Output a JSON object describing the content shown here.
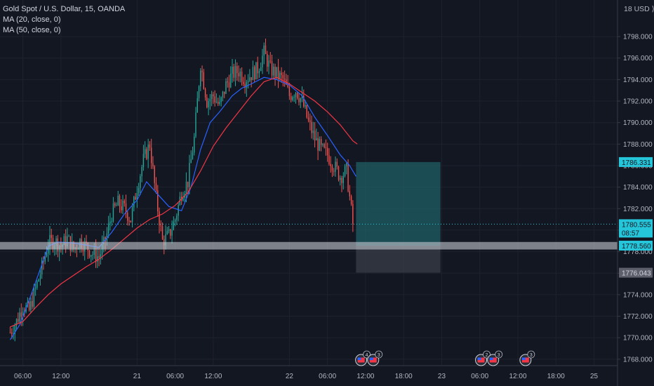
{
  "legend": {
    "symbol": "Gold Spot / U.S. Dollar, 15, OANDA",
    "ma20": "MA (20, close, 0)",
    "ma50": "MA (50, close, 0)"
  },
  "axis_unit": "18 USD ⟩0",
  "colors": {
    "bg": "#131722",
    "up": "#26a69a",
    "down": "#ef5350",
    "ma20": "#2962ff",
    "ma50": "#f23645",
    "text": "#b2b5be",
    "grid": "#1e222d",
    "axis_line": "#363a45",
    "target_zone": "#1f5a60",
    "stop_zone": "#3a3d48",
    "hband": "#c5c8d0",
    "price_tag": "#26c6da"
  },
  "chart_data": {
    "type": "candlestick",
    "ylim": [
      1767.4,
      1801.4
    ],
    "y_ticks": [
      1768,
      1770,
      1772,
      1774,
      1776,
      1778,
      1780,
      1782,
      1784,
      1786,
      1788,
      1790,
      1792,
      1794,
      1796,
      1798
    ],
    "y_tick_labels": [
      "1768.000",
      "1770.000",
      "1772.000",
      "1774.000",
      "1776.000",
      "1778.000",
      "1780.000",
      "1782.000",
      "1784.000",
      "1786.000",
      "1788.000",
      "1790.000",
      "1792.000",
      "1794.000",
      "1796.000",
      "1798.000"
    ],
    "x_ticks": [
      {
        "t": 2,
        "label": "06:00"
      },
      {
        "t": 8,
        "label": "12:00"
      },
      {
        "t": 20,
        "label": "21"
      },
      {
        "t": 26,
        "label": "06:00"
      },
      {
        "t": 32,
        "label": "12:00"
      },
      {
        "t": 44,
        "label": "22"
      },
      {
        "t": 50,
        "label": "06:00"
      },
      {
        "t": 56,
        "label": "12:00"
      },
      {
        "t": 62,
        "label": "18:00"
      },
      {
        "t": 68,
        "label": "23"
      },
      {
        "t": 74,
        "label": "06:00"
      },
      {
        "t": 80,
        "label": "12:00"
      },
      {
        "t": 86,
        "label": "18:00"
      },
      {
        "t": 92,
        "label": "25"
      }
    ],
    "x_range": [
      -1.6,
      95.7
    ],
    "candles_per_hour": 4,
    "close_path": [
      [
        0,
        1770.5
      ],
      [
        1,
        1771.5
      ],
      [
        2,
        1773.0
      ],
      [
        3,
        1772.5
      ],
      [
        4,
        1774.5
      ],
      [
        5,
        1776.5
      ],
      [
        6,
        1778.8
      ],
      [
        7,
        1779.0
      ],
      [
        8,
        1778.5
      ],
      [
        9,
        1779.2
      ],
      [
        10,
        1778.2
      ],
      [
        11,
        1779.0
      ],
      [
        12,
        1778.5
      ],
      [
        13,
        1777.8
      ],
      [
        14,
        1777.5
      ],
      [
        15,
        1779.0
      ],
      [
        16,
        1781.5
      ],
      [
        17,
        1782.5
      ],
      [
        18,
        1782.0
      ],
      [
        19,
        1781.0
      ],
      [
        20,
        1784.0
      ],
      [
        21,
        1786.5
      ],
      [
        22,
        1788.0
      ],
      [
        23,
        1783.0
      ],
      [
        24,
        1779.0
      ],
      [
        25,
        1779.5
      ],
      [
        26,
        1781.0
      ],
      [
        27,
        1783.5
      ],
      [
        28,
        1784.5
      ],
      [
        29,
        1788.5
      ],
      [
        30,
        1795.5
      ],
      [
        31,
        1792.0
      ],
      [
        32,
        1792.5
      ],
      [
        33,
        1791.5
      ],
      [
        34,
        1793.5
      ],
      [
        35,
        1794.5
      ],
      [
        36,
        1794.8
      ],
      [
        37,
        1794.0
      ],
      [
        38,
        1794.5
      ],
      [
        39,
        1795.0
      ],
      [
        40,
        1796.5
      ],
      [
        41,
        1795.0
      ],
      [
        42,
        1794.5
      ],
      [
        43,
        1794.0
      ],
      [
        44,
        1792.5
      ],
      [
        45,
        1793.0
      ],
      [
        46,
        1792.0
      ],
      [
        47,
        1790.0
      ],
      [
        48,
        1788.5
      ],
      [
        49,
        1787.5
      ],
      [
        50,
        1787.0
      ],
      [
        51,
        1786.0
      ],
      [
        52,
        1785.0
      ],
      [
        53,
        1785.5
      ],
      [
        54,
        1780.555
      ]
    ],
    "moving_averages": [
      {
        "name": "MA (20, close, 0)",
        "points": [
          [
            0,
            1769.8
          ],
          [
            1.5,
            1771.2
          ],
          [
            3,
            1773.5
          ],
          [
            5,
            1776.8
          ],
          [
            6,
            1778.5
          ],
          [
            7.5,
            1778.9
          ],
          [
            10,
            1778.8
          ],
          [
            12,
            1778.6
          ],
          [
            14,
            1778.4
          ],
          [
            16,
            1779.8
          ],
          [
            18,
            1781.5
          ],
          [
            20,
            1782.8
          ],
          [
            21.5,
            1784.5
          ],
          [
            23,
            1783.5
          ],
          [
            25,
            1782.2
          ],
          [
            27,
            1781.8
          ],
          [
            28.5,
            1784.0
          ],
          [
            30,
            1787.5
          ],
          [
            31.5,
            1790.0
          ],
          [
            33,
            1791.0
          ],
          [
            35,
            1792.5
          ],
          [
            36.5,
            1793.2
          ],
          [
            38,
            1793.6
          ],
          [
            40,
            1794.2
          ],
          [
            42,
            1794.0
          ],
          [
            44,
            1793.5
          ],
          [
            46,
            1792.5
          ],
          [
            48,
            1790.5
          ],
          [
            50,
            1788.8
          ],
          [
            52,
            1787.0
          ],
          [
            53.5,
            1786.0
          ],
          [
            54.5,
            1785.0
          ]
        ]
      },
      {
        "name": "MA (50, close, 0)",
        "points": [
          [
            0,
            1771.0
          ],
          [
            2,
            1771.5
          ],
          [
            4,
            1772.8
          ],
          [
            6,
            1774.0
          ],
          [
            8,
            1775.0
          ],
          [
            10,
            1775.8
          ],
          [
            12,
            1776.6
          ],
          [
            14,
            1777.3
          ],
          [
            16,
            1778.2
          ],
          [
            18,
            1779.2
          ],
          [
            20,
            1780.2
          ],
          [
            22,
            1781.0
          ],
          [
            24,
            1781.5
          ],
          [
            26,
            1782.3
          ],
          [
            28,
            1783.5
          ],
          [
            30,
            1785.5
          ],
          [
            32,
            1787.8
          ],
          [
            34,
            1789.5
          ],
          [
            36,
            1791.0
          ],
          [
            38,
            1792.5
          ],
          [
            40,
            1793.8
          ],
          [
            42,
            1794.2
          ],
          [
            44,
            1793.6
          ],
          [
            46,
            1792.8
          ],
          [
            48,
            1792.0
          ],
          [
            50,
            1791.0
          ],
          [
            52,
            1789.8
          ],
          [
            54,
            1788.3
          ],
          [
            54.7,
            1788.0
          ]
        ]
      }
    ],
    "horizontal_band": {
      "y1": 1778.2,
      "y2": 1778.9
    },
    "dotted_price_line": 1780.555,
    "position_tool": {
      "x_start": 54.5,
      "x_end": 67.8,
      "target": 1786.331,
      "entry": 1778.56,
      "stop": 1776.043
    },
    "price_labels": [
      {
        "value": "1786.331",
        "y": 1786.331,
        "style": "teal"
      },
      {
        "value": "1780.555",
        "y": 1780.555,
        "style": "price",
        "sub": "08:57"
      },
      {
        "value": "1778.560",
        "y": 1778.56,
        "style": "teal"
      },
      {
        "value": "1776.043",
        "y": 1776.043,
        "style": "grey"
      }
    ],
    "event_markers": [
      {
        "t": 55.3,
        "badge": "4"
      },
      {
        "t": 57.2,
        "badge": "3"
      },
      {
        "t": 74.2,
        "badge": "2"
      },
      {
        "t": 76.1,
        "badge": "3"
      },
      {
        "t": 81.2,
        "badge": "3"
      }
    ]
  }
}
